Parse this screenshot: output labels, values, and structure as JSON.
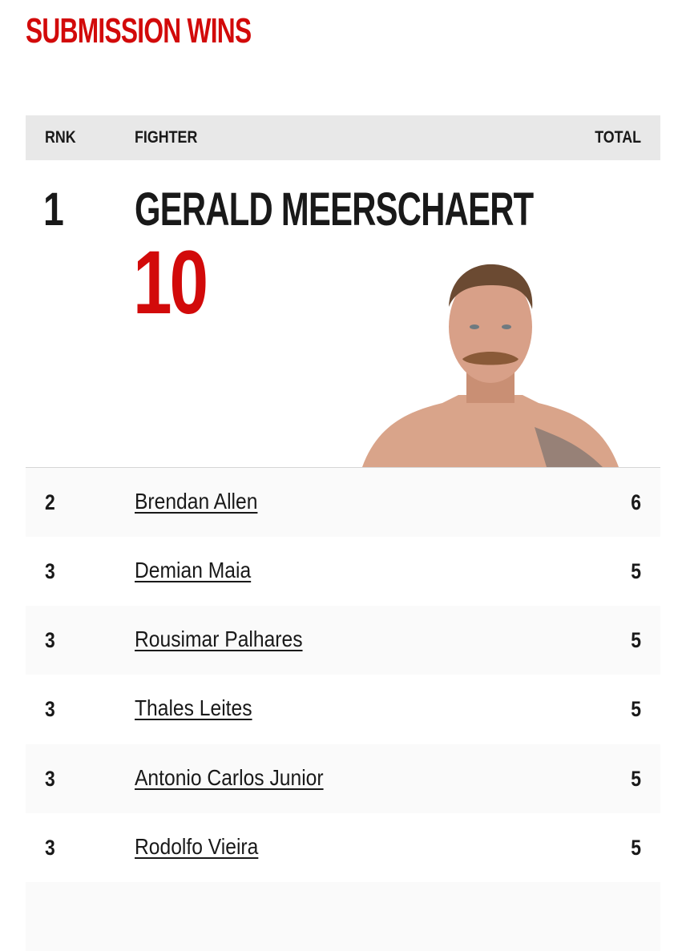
{
  "title": "SUBMISSION WINS",
  "accent_color": "#d20a0a",
  "table": {
    "headers": {
      "rank": "RNK",
      "fighter": "FIGHTER",
      "total": "TOTAL"
    },
    "leader": {
      "rank": "1",
      "name": "GERALD MEERSCHAERT",
      "total": "10",
      "photo": "fighter-headshot"
    },
    "rows": [
      {
        "rank": "2",
        "name": "Brendan Allen",
        "total": "6"
      },
      {
        "rank": "3",
        "name": "Demian Maia",
        "total": "5"
      },
      {
        "rank": "3",
        "name": "Rousimar Palhares",
        "total": "5"
      },
      {
        "rank": "3",
        "name": "Thales Leites",
        "total": "5"
      },
      {
        "rank": "3",
        "name": "Antonio Carlos Junior",
        "total": "5"
      },
      {
        "rank": "3",
        "name": "Rodolfo Vieira",
        "total": "5"
      }
    ]
  }
}
